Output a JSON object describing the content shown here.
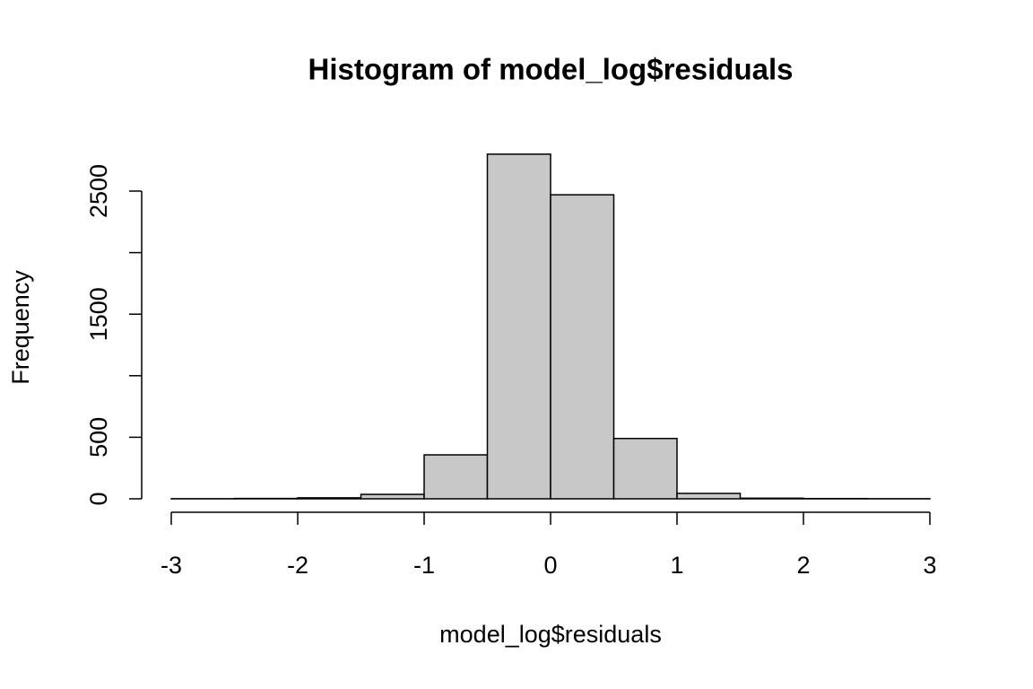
{
  "chart_data": {
    "type": "histogram",
    "title": "Histogram of model_log$residuals",
    "x_label": "model_log$residuals",
    "y_label": "Frequency",
    "bins": [
      -3,
      -2.5,
      -2,
      -1.5,
      -1,
      -0.5,
      0,
      0.5,
      1,
      1.5,
      2,
      2.5,
      3
    ],
    "counts": [
      1,
      3,
      8,
      36,
      357,
      2800,
      2470,
      490,
      44,
      5,
      2,
      1
    ],
    "color": "#c8c8c8",
    "xlim": [
      -3,
      3
    ],
    "xticks": [
      -3,
      -2,
      -1,
      0,
      1,
      2,
      3
    ],
    "ylim": [
      0,
      2900
    ],
    "yticks": [
      0,
      500,
      {
        "value": 1000,
        "label": null
      },
      1500,
      {
        "value": 2000,
        "label": null
      },
      2500
    ]
  }
}
